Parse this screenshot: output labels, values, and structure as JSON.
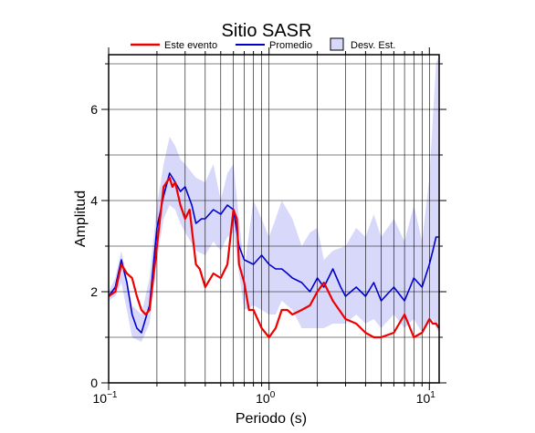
{
  "chart_data": {
    "type": "line",
    "title": "Sitio SASR",
    "xlabel": "Periodo (s)",
    "ylabel": "Amplitud",
    "x_scale": "log",
    "xlim": [
      0.1,
      11.5
    ],
    "ylim": [
      0,
      7.2
    ],
    "grid": true,
    "legend_position": "top",
    "x_ticks": [
      {
        "value": 0.1,
        "base": "10",
        "exp": "−1"
      },
      {
        "value": 1,
        "base": "10",
        "exp": "0"
      },
      {
        "value": 10,
        "base": "10",
        "exp": "1"
      }
    ],
    "y_ticks": [
      0,
      2,
      4,
      6
    ],
    "legend": [
      {
        "label": "Este evento",
        "kind": "line",
        "color": "#ff0000"
      },
      {
        "label": "Promedio",
        "kind": "line",
        "color": "#0000cc"
      },
      {
        "label": "Desv. Est.",
        "kind": "band",
        "color": "#d8d8fa"
      }
    ],
    "band": {
      "name": "Desv. Est.",
      "color": "#d8d8fa",
      "x": [
        0.1,
        0.11,
        0.12,
        0.13,
        0.14,
        0.16,
        0.18,
        0.2,
        0.22,
        0.24,
        0.26,
        0.28,
        0.3,
        0.35,
        0.4,
        0.45,
        0.5,
        0.55,
        0.6,
        0.65,
        0.7,
        0.8,
        0.9,
        1.0,
        1.1,
        1.2,
        1.4,
        1.6,
        1.8,
        2.0,
        2.2,
        2.5,
        3.0,
        3.5,
        4.0,
        4.5,
        5.0,
        6.0,
        7.0,
        8.0,
        9.0,
        10.0,
        10.5,
        11.0,
        11.5
      ],
      "upper": [
        2.0,
        2.3,
        2.9,
        2.3,
        1.7,
        1.5,
        2.3,
        3.9,
        4.8,
        5.4,
        5.2,
        4.9,
        4.8,
        4.5,
        4.4,
        4.8,
        4.0,
        4.6,
        4.8,
        3.6,
        2.5,
        4.0,
        3.6,
        3.2,
        3.6,
        4.0,
        3.6,
        3.0,
        3.3,
        3.4,
        2.7,
        2.9,
        3.0,
        3.4,
        3.2,
        3.7,
        3.2,
        3.6,
        3.1,
        3.9,
        3.1,
        4.5,
        5.8,
        7.0,
        7.2
      ],
      "lower": [
        1.8,
        1.9,
        2.2,
        1.6,
        1.0,
        0.9,
        1.3,
        2.7,
        3.6,
        3.9,
        3.8,
        3.5,
        3.3,
        2.9,
        2.8,
        3.1,
        2.9,
        3.2,
        3.3,
        2.4,
        1.6,
        1.7,
        1.6,
        1.5,
        1.5,
        1.8,
        1.6,
        1.2,
        1.2,
        1.2,
        1.2,
        1.3,
        1.3,
        1.5,
        1.3,
        1.4,
        1.2,
        1.5,
        1.2,
        1.4,
        1.1,
        1.3,
        1.4,
        1.2,
        1.1
      ]
    },
    "series": [
      {
        "name": "Promedio",
        "color": "#0000cc",
        "x": [
          0.1,
          0.11,
          0.12,
          0.13,
          0.14,
          0.15,
          0.16,
          0.18,
          0.2,
          0.22,
          0.24,
          0.25,
          0.26,
          0.28,
          0.3,
          0.33,
          0.35,
          0.38,
          0.4,
          0.45,
          0.5,
          0.55,
          0.6,
          0.65,
          0.7,
          0.8,
          0.9,
          1.0,
          1.1,
          1.2,
          1.3,
          1.4,
          1.6,
          1.8,
          2.0,
          2.2,
          2.5,
          2.8,
          3.0,
          3.5,
          4.0,
          4.5,
          5.0,
          6.0,
          7.0,
          8.0,
          9.0,
          10.0,
          10.5,
          11.0,
          11.5
        ],
        "y": [
          1.9,
          2.1,
          2.7,
          2.2,
          1.5,
          1.2,
          1.1,
          1.7,
          3.4,
          4.1,
          4.6,
          4.5,
          4.4,
          4.2,
          4.3,
          3.9,
          3.5,
          3.6,
          3.6,
          3.8,
          3.7,
          3.9,
          3.8,
          3.0,
          2.7,
          2.6,
          2.8,
          2.6,
          2.5,
          2.5,
          2.4,
          2.3,
          2.2,
          2.0,
          2.3,
          2.1,
          2.5,
          2.1,
          1.9,
          2.1,
          1.9,
          2.2,
          1.8,
          2.1,
          1.8,
          2.3,
          2.1,
          2.6,
          2.9,
          3.2,
          3.2
        ]
      },
      {
        "name": "Este evento",
        "color": "#ee0000",
        "x": [
          0.1,
          0.11,
          0.12,
          0.13,
          0.14,
          0.15,
          0.16,
          0.17,
          0.18,
          0.2,
          0.22,
          0.24,
          0.25,
          0.26,
          0.28,
          0.3,
          0.32,
          0.35,
          0.37,
          0.4,
          0.45,
          0.5,
          0.55,
          0.6,
          0.63,
          0.65,
          0.7,
          0.75,
          0.8,
          0.9,
          1.0,
          1.1,
          1.2,
          1.3,
          1.4,
          1.6,
          1.8,
          2.0,
          2.2,
          2.5,
          3.0,
          3.5,
          4.0,
          4.5,
          5.0,
          6.0,
          7.0,
          8.0,
          9.0,
          10.0,
          10.5,
          11.0,
          11.5
        ],
        "y": [
          1.9,
          2.0,
          2.6,
          2.4,
          2.3,
          1.9,
          1.6,
          1.5,
          1.6,
          3.0,
          4.3,
          4.5,
          4.3,
          4.4,
          3.9,
          3.6,
          3.8,
          2.6,
          2.5,
          2.1,
          2.4,
          2.3,
          2.6,
          3.8,
          3.6,
          2.6,
          2.2,
          1.6,
          1.6,
          1.2,
          1.0,
          1.2,
          1.6,
          1.6,
          1.5,
          1.6,
          1.7,
          2.0,
          2.2,
          1.8,
          1.4,
          1.3,
          1.1,
          1.0,
          1.0,
          1.1,
          1.5,
          1.0,
          1.1,
          1.4,
          1.3,
          1.3,
          1.2
        ]
      }
    ]
  }
}
